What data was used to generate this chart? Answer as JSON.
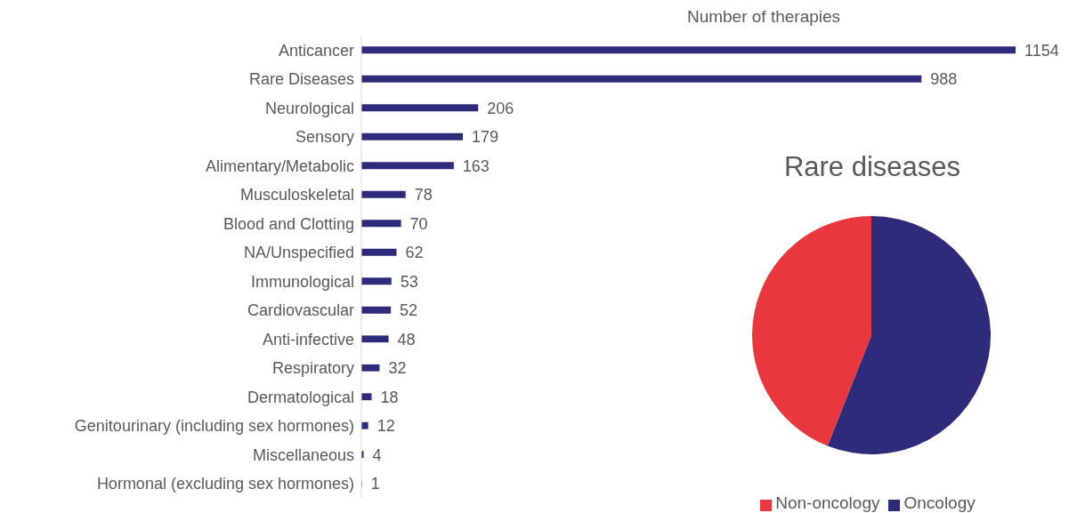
{
  "chart_data": [
    {
      "type": "bar",
      "orientation": "horizontal",
      "title": "Number of therapies",
      "categories": [
        "Anticancer",
        "Rare Diseases",
        "Neurological",
        "Sensory",
        "Alimentary/Metabolic",
        "Musculoskeletal",
        "Blood and Clotting",
        "NA/Unspecified",
        "Immunological",
        "Cardiovascular",
        "Anti-infective",
        "Respiratory",
        "Dermatological",
        "Genitourinary (including sex hormones)",
        "Miscellaneous",
        "Hormonal (excluding sex hormones)"
      ],
      "values": [
        1154,
        988,
        206,
        179,
        163,
        78,
        70,
        62,
        53,
        52,
        48,
        32,
        18,
        12,
        4,
        1
      ],
      "color": "#2e2a7c",
      "data_labels": true
    },
    {
      "type": "pie",
      "title": "Rare diseases",
      "categories": [
        "Oncology",
        "Non-oncology"
      ],
      "values": [
        56,
        44
      ],
      "colors": [
        "#2e2a7c",
        "#e8383d"
      ],
      "legend": "bottom"
    }
  ]
}
